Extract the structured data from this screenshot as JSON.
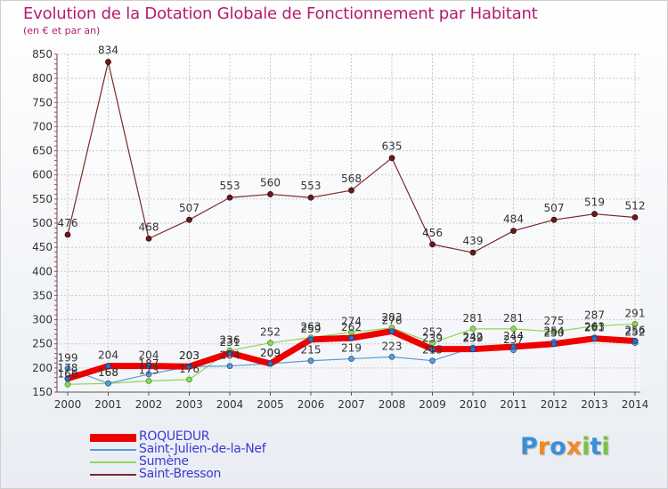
{
  "title": "Evolution de la Dotation Globale de Fonctionnement par Habitant",
  "subtitle": "(en € et par an)",
  "logo": {
    "text": "Proxiti",
    "letters": [
      {
        "ch": "P",
        "color": "#3a8fd6"
      },
      {
        "ch": "r",
        "color": "#f08a24"
      },
      {
        "ch": "o",
        "color": "#3a8fd6"
      },
      {
        "ch": "x",
        "color": "#f08a24"
      },
      {
        "ch": "i",
        "color": "#7cc242"
      },
      {
        "ch": "t",
        "color": "#3a8fd6"
      },
      {
        "ch": "i",
        "color": "#7cc242"
      }
    ]
  },
  "chart_data": {
    "type": "line",
    "title": "Evolution de la Dotation Globale de Fonctionnement par Habitant",
    "subtitle": "(en € et par an)",
    "xlabel": "",
    "ylabel": "",
    "x": [
      "2000",
      "2001",
      "2002",
      "2003",
      "2004",
      "2005",
      "2006",
      "2007",
      "2008",
      "2009",
      "2010",
      "2011",
      "2012",
      "2013",
      "2014"
    ],
    "ylim": [
      150,
      850
    ],
    "yticks": [
      150,
      200,
      250,
      300,
      350,
      400,
      450,
      500,
      550,
      600,
      650,
      700,
      750,
      800,
      850
    ],
    "grid": true,
    "legend_position": "bottom-left",
    "series": [
      {
        "name": "ROQUEDUR",
        "color": "#ee0000",
        "values": [
          178,
          204,
          204,
          203,
          231,
          209,
          259,
          262,
          276,
          239,
          239,
          244,
          250,
          261,
          256
        ]
      },
      {
        "name": "Saint-Julien-de-la-Nef",
        "color": "#5d9bd3",
        "values": [
          199,
          168,
          187,
          203,
          204,
          209,
          215,
          219,
          223,
          215,
          242,
          237,
          254,
          263,
          252
        ]
      },
      {
        "name": "Sumène",
        "color": "#8fd65a",
        "values": [
          166,
          168,
          173,
          176,
          236,
          252,
          263,
          274,
          283,
          252,
          281,
          281,
          275,
          287,
          291
        ]
      },
      {
        "name": "Saint-Bresson",
        "color": "#7a2a2a",
        "values": [
          476,
          834,
          468,
          507,
          553,
          560,
          553,
          568,
          635,
          456,
          439,
          484,
          507,
          519,
          512
        ]
      }
    ]
  }
}
